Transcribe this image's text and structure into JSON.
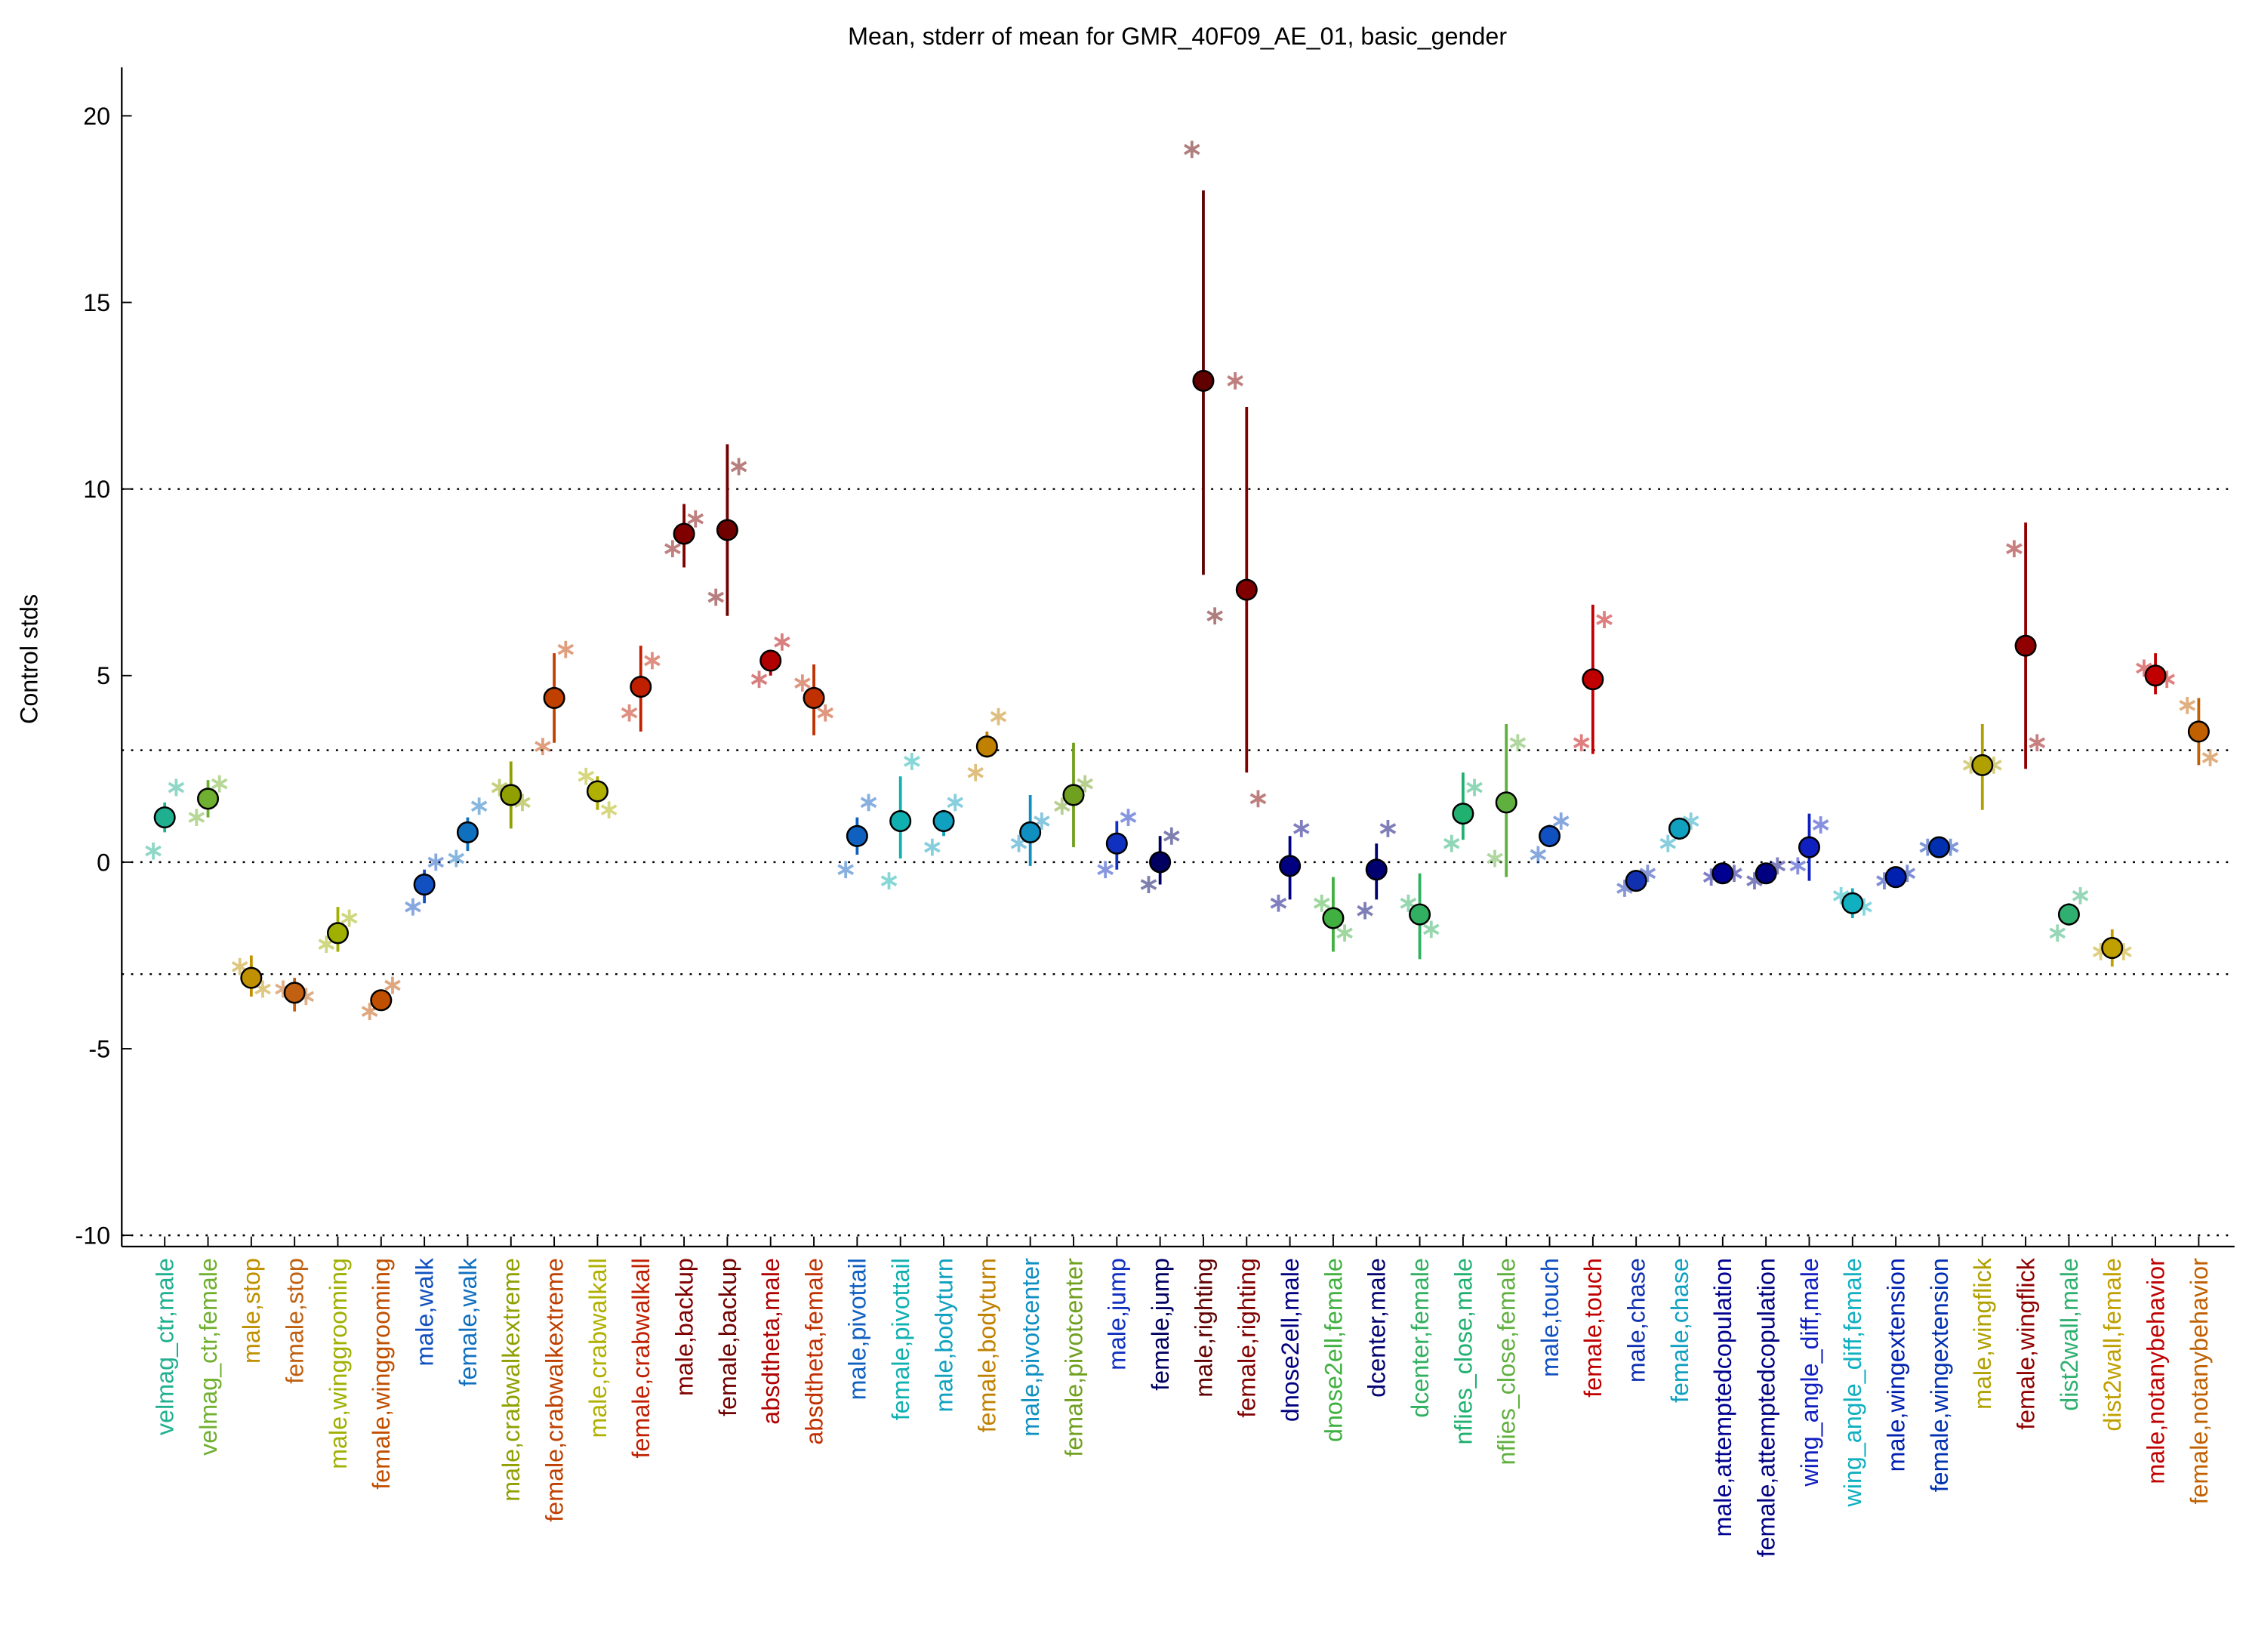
{
  "chart_data": {
    "type": "errorbar",
    "title": "Mean, stderr of mean for GMR_40F09_AE_01, basic_gender",
    "ylabel": "Control stds",
    "ylim": [
      -10.3,
      21.3
    ],
    "yticks": [
      -10,
      -5,
      0,
      5,
      10,
      15,
      20
    ],
    "hlines": [
      -10,
      -3,
      0,
      3,
      10
    ],
    "categories": [
      "velmag_ctr,male",
      "velmag_ctr,female",
      "male,stop",
      "female,stop",
      "male,winggrooming",
      "female,winggrooming",
      "male,walk",
      "female,walk",
      "male,crabwalkextreme",
      "female,crabwalkextreme",
      "male,crabwalkall",
      "female,crabwalkall",
      "male,backup",
      "female,backup",
      "absdtheta,male",
      "absdtheta,female",
      "male,pivottail",
      "female,pivottail",
      "male,bodyturn",
      "female,bodyturn",
      "male,pivotcenter",
      "female,pivotcenter",
      "male,jump",
      "female,jump",
      "male,righting",
      "female,righting",
      "dnose2ell,male",
      "dnose2ell,female",
      "dcenter,male",
      "dcenter,female",
      "nflies_close,male",
      "nflies_close,female",
      "male,touch",
      "female,touch",
      "male,chase",
      "female,chase",
      "male,attemptedcopulation",
      "female,attemptedcopulation",
      "wing_angle_diff,male",
      "wing_angle_diff,female",
      "male,wingextension",
      "female,wingextension",
      "male,wingflick",
      "female,wingflick",
      "dist2wall,male",
      "dist2wall,female",
      "male,notanybehavior",
      "female,notanybehavior"
    ],
    "values": [
      1.2,
      1.7,
      -3.1,
      -3.5,
      -1.9,
      -3.7,
      -0.6,
      0.8,
      1.8,
      4.4,
      1.9,
      4.7,
      8.8,
      8.9,
      5.4,
      4.4,
      0.7,
      1.1,
      1.1,
      3.1,
      0.8,
      1.8,
      0.5,
      0.0,
      12.9,
      7.3,
      -0.1,
      -1.5,
      -0.2,
      -1.4,
      1.3,
      1.6,
      0.7,
      4.9,
      -0.5,
      0.9,
      -0.3,
      -0.3,
      0.4,
      -1.1,
      -0.4,
      0.4,
      2.6,
      5.8,
      -1.4,
      -2.3,
      5.0,
      3.5
    ],
    "lower": [
      0.8,
      1.2,
      -3.6,
      -4.0,
      -2.4,
      -3.9,
      -1.1,
      0.3,
      0.9,
      3.2,
      1.4,
      3.5,
      7.9,
      6.6,
      5.0,
      3.4,
      0.2,
      0.1,
      0.7,
      2.8,
      -0.1,
      0.4,
      -0.2,
      -0.6,
      7.7,
      2.4,
      -1.0,
      -2.4,
      -1.0,
      -2.6,
      0.6,
      -0.4,
      0.4,
      2.9,
      -0.6,
      0.6,
      -0.5,
      -0.5,
      -0.5,
      -1.5,
      -0.5,
      0.3,
      1.4,
      2.5,
      -1.7,
      -2.8,
      4.5,
      2.6
    ],
    "upper": [
      1.6,
      2.2,
      -2.5,
      -3.1,
      -1.2,
      -3.5,
      -0.2,
      1.2,
      2.7,
      5.6,
      2.3,
      5.8,
      9.6,
      11.2,
      5.6,
      5.3,
      1.2,
      2.3,
      1.4,
      3.5,
      1.8,
      3.2,
      1.1,
      0.7,
      18.0,
      12.2,
      0.7,
      -0.4,
      0.5,
      -0.3,
      2.4,
      3.7,
      1.0,
      6.9,
      -0.3,
      1.1,
      -0.2,
      -0.1,
      1.3,
      -0.7,
      -0.2,
      0.5,
      3.7,
      9.1,
      -1.1,
      -1.8,
      5.6,
      4.4
    ],
    "points": [
      [
        0.3,
        2.0
      ],
      [
        1.2,
        2.1
      ],
      [
        -2.8,
        -3.4
      ],
      [
        -3.4,
        -3.6
      ],
      [
        -2.2,
        -1.5
      ],
      [
        -4.0,
        -3.3
      ],
      [
        -1.2,
        0.0
      ],
      [
        0.1,
        1.5
      ],
      [
        2.0,
        1.6
      ],
      [
        3.1,
        5.7
      ],
      [
        2.3,
        1.4
      ],
      [
        4.0,
        5.4
      ],
      [
        8.4,
        9.2
      ],
      [
        7.1,
        10.6
      ],
      [
        4.9,
        5.9
      ],
      [
        4.8,
        4.0
      ],
      [
        -0.2,
        1.6
      ],
      [
        -0.5,
        2.7
      ],
      [
        0.4,
        1.6
      ],
      [
        2.4,
        3.9
      ],
      [
        0.5,
        1.1
      ],
      [
        1.5,
        2.1
      ],
      [
        -0.2,
        1.2
      ],
      [
        -0.6,
        0.7
      ],
      [
        19.1,
        6.6
      ],
      [
        12.9,
        1.7
      ],
      [
        -1.1,
        0.9
      ],
      [
        -1.1,
        -1.9
      ],
      [
        -1.3,
        0.9
      ],
      [
        -1.1,
        -1.8
      ],
      [
        0.5,
        2.0
      ],
      [
        0.1,
        3.2
      ],
      [
        0.2,
        1.1
      ],
      [
        3.2,
        6.5
      ],
      [
        -0.7,
        -0.3
      ],
      [
        0.5,
        1.1
      ],
      [
        -0.4,
        -0.3
      ],
      [
        -0.5,
        -0.1
      ],
      [
        -0.1,
        1.0
      ],
      [
        -0.9,
        -1.2
      ],
      [
        -0.5,
        -0.3
      ],
      [
        0.4,
        0.4
      ],
      [
        2.6,
        2.6
      ],
      [
        8.4,
        3.2
      ],
      [
        -1.9,
        -0.9
      ],
      [
        -2.4,
        -2.4
      ],
      [
        5.2,
        4.9
      ],
      [
        4.2,
        2.8
      ]
    ],
    "colors": [
      "#20b090",
      "#70b030",
      "#c09000",
      "#c06010",
      "#a0b000",
      "#c05000",
      "#1050c0",
      "#1070c0",
      "#90a000",
      "#c04000",
      "#b0b000",
      "#c02000",
      "#800000",
      "#700000",
      "#b00000",
      "#c03000",
      "#1060c0",
      "#10b0b0",
      "#10a0c0",
      "#c08000",
      "#1090c0",
      "#70a020",
      "#1030c0",
      "#000060",
      "#600000",
      "#800000",
      "#000080",
      "#40b040",
      "#000070",
      "#30b060",
      "#20b070",
      "#60b040",
      "#1050c0",
      "#c00000",
      "#1030b0",
      "#10a0c0",
      "#000090",
      "#000080",
      "#1020c0",
      "#10b0c0",
      "#0020b0",
      "#0030b0",
      "#b0a000",
      "#900000",
      "#30b070",
      "#c0a000",
      "#c00000",
      "#c06000"
    ]
  }
}
